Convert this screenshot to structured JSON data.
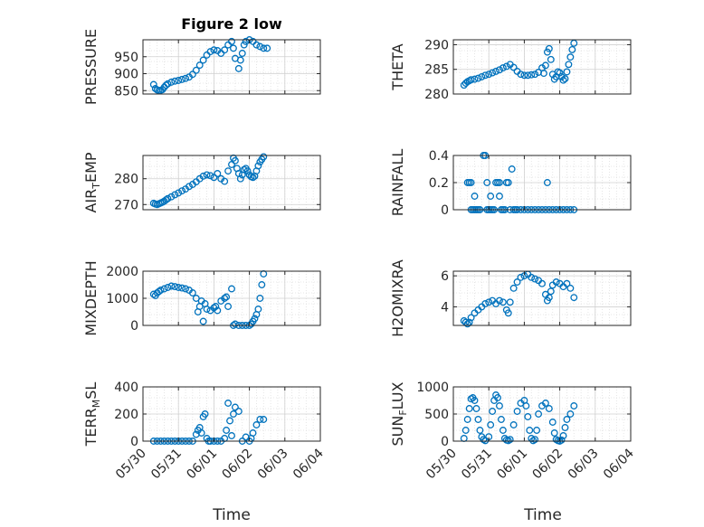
{
  "figure": {
    "title": "Figure 2 low",
    "xlabel": "Time",
    "x_ticks": [
      "05/30",
      "05/31",
      "06/01",
      "06/02",
      "06/03",
      "06/04"
    ]
  },
  "colors": {
    "marker": "#0072BD",
    "axis": "#262626",
    "grid": "#dfdfdf",
    "background": "#ffffff"
  },
  "chart_data": [
    {
      "type": "scatter",
      "ylabel": "PRESSURE",
      "xlim": [
        0,
        5
      ],
      "ylim": [
        840,
        1000
      ],
      "yticks": [
        850,
        900,
        950
      ],
      "x": [
        0.3,
        0.35,
        0.4,
        0.45,
        0.5,
        0.55,
        0.6,
        0.65,
        0.7,
        0.8,
        0.9,
        1.0,
        1.1,
        1.2,
        1.3,
        1.4,
        1.5,
        1.6,
        1.7,
        1.8,
        1.9,
        2.0,
        2.1,
        2.2,
        2.3,
        2.4,
        2.5,
        2.55,
        2.6,
        2.7,
        2.75,
        2.8,
        2.85,
        2.9,
        3.0,
        3.1,
        3.2,
        3.3,
        3.4,
        3.5
      ],
      "y": [
        868,
        856,
        852,
        850,
        851,
        853,
        860,
        866,
        870,
        875,
        878,
        880,
        883,
        886,
        890,
        898,
        910,
        925,
        940,
        955,
        965,
        970,
        968,
        960,
        970,
        985,
        995,
        975,
        945,
        915,
        940,
        960,
        985,
        995,
        1000,
        995,
        985,
        980,
        975,
        975
      ]
    },
    {
      "type": "scatter",
      "ylabel": "THETA",
      "xlim": [
        0,
        5
      ],
      "ylim": [
        280,
        291
      ],
      "yticks": [
        280,
        285,
        290
      ],
      "x": [
        0.3,
        0.35,
        0.4,
        0.45,
        0.5,
        0.6,
        0.7,
        0.8,
        0.9,
        1.0,
        1.1,
        1.2,
        1.3,
        1.4,
        1.5,
        1.6,
        1.7,
        1.8,
        1.9,
        2.0,
        2.1,
        2.2,
        2.3,
        2.4,
        2.5,
        2.55,
        2.6,
        2.65,
        2.7,
        2.75,
        2.8,
        2.85,
        2.9,
        2.95,
        3.0,
        3.05,
        3.1,
        3.15,
        3.2,
        3.25,
        3.3,
        3.35,
        3.4
      ],
      "y": [
        281.8,
        282.2,
        282.5,
        282.7,
        282.9,
        283.0,
        283.2,
        283.5,
        283.8,
        284.0,
        284.3,
        284.6,
        284.9,
        285.3,
        285.6,
        286.0,
        285.4,
        284.6,
        284.0,
        283.8,
        283.8,
        283.9,
        284.0,
        284.4,
        285.3,
        284.2,
        285.8,
        288.5,
        289.2,
        287.0,
        284.0,
        283.0,
        283.5,
        284.5,
        284.3,
        283.5,
        282.8,
        283.1,
        284.5,
        286.0,
        287.5,
        289.0,
        290.3
      ]
    },
    {
      "type": "scatter",
      "ylabel": "AIR_TEMP",
      "xlim": [
        0,
        5
      ],
      "ylim": [
        268,
        289
      ],
      "yticks": [
        270,
        280
      ],
      "x": [
        0.3,
        0.35,
        0.4,
        0.45,
        0.5,
        0.55,
        0.6,
        0.65,
        0.7,
        0.8,
        0.9,
        1.0,
        1.1,
        1.2,
        1.3,
        1.4,
        1.5,
        1.6,
        1.7,
        1.8,
        1.9,
        2.0,
        2.1,
        2.2,
        2.3,
        2.4,
        2.5,
        2.55,
        2.6,
        2.65,
        2.7,
        2.75,
        2.8,
        2.85,
        2.9,
        2.95,
        3.0,
        3.05,
        3.1,
        3.15,
        3.2,
        3.25,
        3.3,
        3.35,
        3.4
      ],
      "y": [
        270.5,
        270.2,
        270.0,
        270.3,
        270.6,
        270.9,
        271.3,
        271.8,
        272.3,
        273.0,
        273.8,
        274.5,
        275.3,
        276.0,
        277.0,
        277.8,
        278.8,
        280.0,
        281.0,
        281.5,
        281.2,
        280.5,
        282.0,
        280.0,
        279.0,
        283.0,
        285.5,
        288.0,
        287.0,
        284.0,
        282.0,
        280.0,
        281.5,
        283.5,
        284.0,
        283.0,
        281.5,
        280.8,
        280.5,
        281.0,
        283.0,
        285.0,
        286.5,
        287.5,
        288.5
      ]
    },
    {
      "type": "scatter",
      "ylabel": "RAINFALL",
      "xlim": [
        0,
        5
      ],
      "ylim": [
        0,
        0.4
      ],
      "yticks": [
        0,
        0.2,
        0.4
      ],
      "x": [
        0.4,
        0.45,
        0.5,
        0.5,
        0.55,
        0.6,
        0.6,
        0.65,
        0.7,
        0.75,
        0.85,
        0.9,
        0.95,
        0.95,
        1.0,
        1.05,
        1.05,
        1.1,
        1.15,
        1.2,
        1.25,
        1.3,
        1.3,
        1.35,
        1.4,
        1.45,
        1.5,
        1.55,
        1.6,
        1.65,
        1.7,
        1.75,
        1.8,
        1.9,
        2.0,
        2.1,
        2.2,
        2.3,
        2.4,
        2.5,
        2.6,
        2.65,
        2.7,
        2.8,
        2.9,
        3.0,
        3.1,
        3.2,
        3.3,
        3.4
      ],
      "y": [
        0.2,
        0.2,
        0.2,
        0,
        0,
        0,
        0.1,
        0,
        0,
        0,
        0.4,
        0.4,
        0,
        0.2,
        0,
        0,
        0.1,
        0,
        0,
        0.2,
        0.2,
        0.2,
        0.1,
        0,
        0,
        0,
        0.2,
        0.2,
        0,
        0.3,
        0,
        0,
        0,
        0,
        0,
        0,
        0,
        0,
        0,
        0,
        0,
        0.2,
        0,
        0,
        0,
        0,
        0,
        0,
        0,
        0
      ]
    },
    {
      "type": "scatter",
      "ylabel": "MIXDEPTH",
      "xlim": [
        0,
        5
      ],
      "ylim": [
        0,
        2000
      ],
      "yticks": [
        0,
        1000,
        2000
      ],
      "x": [
        0.3,
        0.35,
        0.4,
        0.45,
        0.5,
        0.6,
        0.7,
        0.8,
        0.9,
        1.0,
        1.1,
        1.2,
        1.3,
        1.4,
        1.5,
        1.55,
        1.6,
        1.65,
        1.7,
        1.75,
        1.8,
        1.9,
        2.0,
        2.05,
        2.1,
        2.2,
        2.3,
        2.35,
        2.4,
        2.5,
        2.55,
        2.6,
        2.7,
        2.8,
        2.9,
        3.0,
        3.05,
        3.1,
        3.15,
        3.2,
        3.25,
        3.3,
        3.35,
        3.4
      ],
      "y": [
        1150,
        1100,
        1200,
        1250,
        1300,
        1350,
        1400,
        1450,
        1430,
        1400,
        1380,
        1350,
        1300,
        1200,
        1000,
        500,
        700,
        900,
        150,
        800,
        600,
        550,
        650,
        700,
        550,
        900,
        1000,
        1050,
        700,
        1350,
        0,
        50,
        0,
        0,
        0,
        0,
        50,
        150,
        250,
        400,
        600,
        1000,
        1500,
        1900
      ]
    },
    {
      "type": "scatter",
      "ylabel": "H2OMIXRA",
      "xlim": [
        0,
        5
      ],
      "ylim": [
        2.8,
        6.3
      ],
      "yticks": [
        4,
        6
      ],
      "x": [
        0.3,
        0.35,
        0.4,
        0.45,
        0.5,
        0.6,
        0.7,
        0.8,
        0.9,
        1.0,
        1.1,
        1.2,
        1.3,
        1.4,
        1.5,
        1.55,
        1.6,
        1.7,
        1.8,
        1.9,
        2.0,
        2.1,
        2.2,
        2.3,
        2.4,
        2.5,
        2.6,
        2.65,
        2.7,
        2.75,
        2.8,
        2.9,
        3.0,
        3.1,
        3.2,
        3.3,
        3.4
      ],
      "y": [
        3.1,
        3.0,
        2.9,
        3.0,
        3.3,
        3.6,
        3.8,
        4.0,
        4.2,
        4.3,
        4.4,
        4.2,
        4.4,
        4.3,
        3.8,
        3.6,
        4.3,
        5.2,
        5.6,
        5.9,
        6.0,
        6.1,
        5.9,
        5.8,
        5.7,
        5.5,
        4.8,
        4.4,
        4.6,
        5.0,
        5.4,
        5.6,
        5.5,
        5.3,
        5.5,
        5.2,
        4.6
      ]
    },
    {
      "type": "scatter",
      "ylabel": "TERR_MSL",
      "xlim": [
        0,
        5
      ],
      "ylim": [
        0,
        400
      ],
      "yticks": [
        0,
        200,
        400
      ],
      "x": [
        0.3,
        0.4,
        0.5,
        0.6,
        0.7,
        0.8,
        0.9,
        1.0,
        1.1,
        1.2,
        1.3,
        1.4,
        1.5,
        1.55,
        1.6,
        1.65,
        1.7,
        1.75,
        1.8,
        1.85,
        1.9,
        2.0,
        2.1,
        2.2,
        2.3,
        2.35,
        2.4,
        2.45,
        2.5,
        2.55,
        2.6,
        2.7,
        2.8,
        2.9,
        3.0,
        3.05,
        3.1,
        3.2,
        3.3,
        3.4
      ],
      "y": [
        0,
        0,
        0,
        0,
        0,
        0,
        0,
        0,
        0,
        0,
        0,
        0,
        50,
        80,
        100,
        60,
        180,
        200,
        20,
        0,
        0,
        0,
        0,
        0,
        20,
        80,
        280,
        150,
        40,
        200,
        250,
        220,
        0,
        30,
        0,
        20,
        60,
        120,
        160,
        160
      ]
    },
    {
      "type": "scatter",
      "ylabel": "SUN_FLUX",
      "xlim": [
        0,
        5
      ],
      "ylim": [
        0,
        1000
      ],
      "yticks": [
        0,
        500,
        1000
      ],
      "x": [
        0.3,
        0.35,
        0.4,
        0.45,
        0.5,
        0.55,
        0.6,
        0.65,
        0.7,
        0.75,
        0.8,
        0.85,
        0.9,
        1.0,
        1.05,
        1.1,
        1.15,
        1.2,
        1.25,
        1.3,
        1.35,
        1.4,
        1.45,
        1.5,
        1.55,
        1.6,
        1.7,
        1.8,
        1.9,
        2.0,
        2.05,
        2.1,
        2.15,
        2.2,
        2.25,
        2.3,
        2.35,
        2.4,
        2.5,
        2.6,
        2.7,
        2.8,
        2.85,
        2.9,
        2.95,
        3.0,
        3.05,
        3.1,
        3.15,
        3.2,
        3.3,
        3.4
      ],
      "y": [
        50,
        200,
        400,
        600,
        780,
        800,
        750,
        600,
        400,
        200,
        80,
        30,
        10,
        80,
        300,
        550,
        750,
        850,
        800,
        650,
        400,
        200,
        50,
        20,
        10,
        30,
        300,
        550,
        700,
        750,
        650,
        450,
        200,
        50,
        10,
        30,
        200,
        500,
        650,
        700,
        600,
        350,
        150,
        30,
        10,
        0,
        20,
        100,
        250,
        400,
        500,
        650
      ]
    }
  ]
}
